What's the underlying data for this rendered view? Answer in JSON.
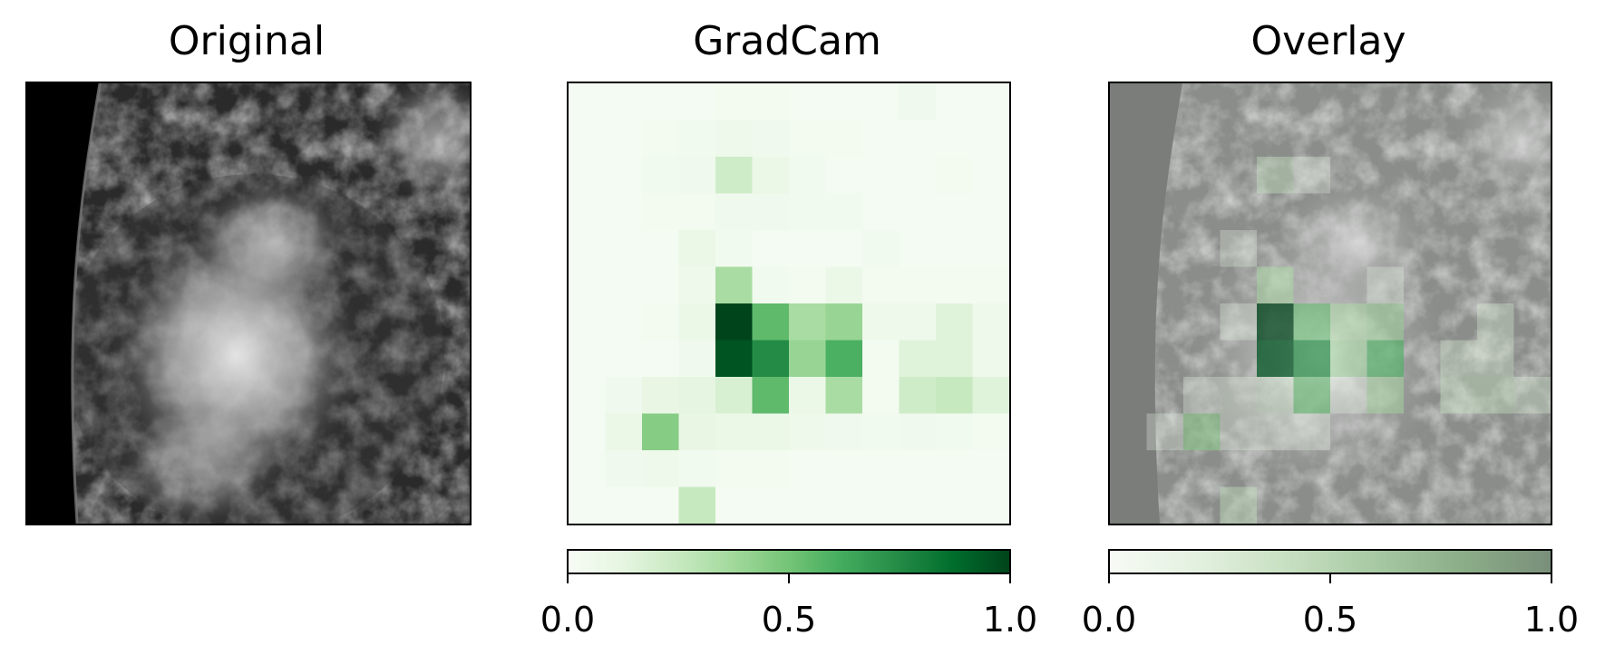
{
  "panels": [
    {
      "title": "Original"
    },
    {
      "title": "GradCam"
    },
    {
      "title": "Overlay"
    }
  ],
  "colorbar": {
    "ticks": [
      "0.0",
      "0.5",
      "1.0"
    ],
    "cmap": "Greens",
    "low_color": "#f7fcf5",
    "high_color": "#00441b"
  },
  "heatmap": {
    "rows": 12,
    "cols": 12,
    "values": [
      [
        0.02,
        0.02,
        0.02,
        0.02,
        0.03,
        0.03,
        0.02,
        0.02,
        0.02,
        0.05,
        0.02,
        0.02
      ],
      [
        0.02,
        0.02,
        0.03,
        0.04,
        0.06,
        0.05,
        0.03,
        0.03,
        0.02,
        0.02,
        0.02,
        0.02
      ],
      [
        0.02,
        0.02,
        0.04,
        0.05,
        0.22,
        0.08,
        0.04,
        0.02,
        0.02,
        0.02,
        0.03,
        0.02
      ],
      [
        0.02,
        0.02,
        0.03,
        0.03,
        0.05,
        0.05,
        0.04,
        0.04,
        0.02,
        0.02,
        0.02,
        0.02
      ],
      [
        0.02,
        0.02,
        0.02,
        0.08,
        0.04,
        0.02,
        0.02,
        0.02,
        0.04,
        0.02,
        0.02,
        0.02
      ],
      [
        0.02,
        0.02,
        0.02,
        0.06,
        0.35,
        0.04,
        0.03,
        0.08,
        0.03,
        0.03,
        0.03,
        0.03
      ],
      [
        0.02,
        0.02,
        0.03,
        0.08,
        1.0,
        0.55,
        0.35,
        0.4,
        0.06,
        0.06,
        0.15,
        0.06
      ],
      [
        0.02,
        0.02,
        0.02,
        0.05,
        0.95,
        0.75,
        0.4,
        0.6,
        0.03,
        0.15,
        0.15,
        0.06
      ],
      [
        0.02,
        0.05,
        0.1,
        0.12,
        0.18,
        0.55,
        0.08,
        0.35,
        0.03,
        0.22,
        0.25,
        0.15
      ],
      [
        0.02,
        0.08,
        0.45,
        0.1,
        0.08,
        0.08,
        0.06,
        0.05,
        0.04,
        0.05,
        0.04,
        0.03
      ],
      [
        0.02,
        0.05,
        0.06,
        0.04,
        0.03,
        0.03,
        0.02,
        0.02,
        0.02,
        0.02,
        0.02,
        0.02
      ],
      [
        0.02,
        0.02,
        0.02,
        0.25,
        0.02,
        0.02,
        0.02,
        0.02,
        0.02,
        0.02,
        0.02,
        0.02
      ]
    ]
  }
}
